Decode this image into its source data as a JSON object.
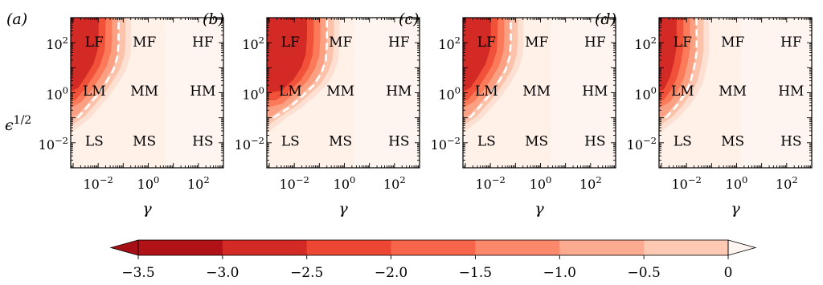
{
  "chart_data": {
    "type": "heatmap",
    "panels": [
      {
        "label": "(a)",
        "dash_path": [
          [
            0.0015,
            0.1
          ],
          [
            0.004,
            0.3
          ],
          [
            0.01,
            0.9
          ],
          [
            0.02,
            2.5
          ],
          [
            0.04,
            8
          ],
          [
            0.06,
            30
          ],
          [
            0.065,
            100
          ],
          [
            0.065,
            1000
          ]
        ]
      },
      {
        "label": "(b)",
        "dash_path": [
          [
            0.0015,
            0.1
          ],
          [
            0.006,
            0.25
          ],
          [
            0.02,
            0.7
          ],
          [
            0.06,
            2
          ],
          [
            0.12,
            6
          ],
          [
            0.18,
            20
          ],
          [
            0.2,
            100
          ],
          [
            0.2,
            1000
          ]
        ]
      },
      {
        "label": "(c)",
        "dash_path": [
          [
            0.0015,
            0.1
          ],
          [
            0.004,
            0.3
          ],
          [
            0.01,
            0.9
          ],
          [
            0.02,
            2.5
          ],
          [
            0.04,
            8
          ],
          [
            0.06,
            30
          ],
          [
            0.065,
            100
          ],
          [
            0.065,
            1000
          ]
        ]
      },
      {
        "label": "(d)",
        "dash_path": [
          [
            0.0015,
            0.1
          ],
          [
            0.004,
            0.3
          ],
          [
            0.008,
            0.8
          ],
          [
            0.014,
            2.5
          ],
          [
            0.02,
            10
          ],
          [
            0.025,
            40
          ],
          [
            0.025,
            1000
          ]
        ]
      }
    ],
    "x_label": "γ",
    "y_label_base": "ϵ",
    "y_label_exp": "1/2",
    "x_scale": "log",
    "y_scale": "log",
    "xlim": [
      0.0008,
      1000
    ],
    "ylim": [
      0.001,
      1000
    ],
    "x_ticks": [
      {
        "base": "10",
        "exp": "−2",
        "value": 0.01
      },
      {
        "base": "10",
        "exp": "0",
        "value": 1
      },
      {
        "base": "10",
        "exp": "2",
        "value": 100
      }
    ],
    "y_ticks": [
      {
        "base": "10",
        "exp": "−2",
        "value": 0.01
      },
      {
        "base": "10",
        "exp": "0",
        "value": 1
      },
      {
        "base": "10",
        "exp": "2",
        "value": 100
      }
    ],
    "regions": [
      {
        "label": "LF",
        "x": 0.007,
        "y": 110
      },
      {
        "label": "MF",
        "x": 0.7,
        "y": 110
      },
      {
        "label": "HF",
        "x": 150,
        "y": 110
      },
      {
        "label": "LM",
        "x": 0.007,
        "y": 1.2
      },
      {
        "label": "MM",
        "x": 0.7,
        "y": 1.2
      },
      {
        "label": "HM",
        "x": 150,
        "y": 1.2
      },
      {
        "label": "LS",
        "x": 0.007,
        "y": 0.012
      },
      {
        "label": "MS",
        "x": 0.7,
        "y": 0.012
      },
      {
        "label": "HS",
        "x": 150,
        "y": 0.012
      }
    ],
    "colorbar": {
      "levels": [
        -3.5,
        -3.0,
        -2.5,
        -2.0,
        -1.5,
        -1.0,
        -0.5,
        0
      ],
      "tick_labels": [
        "−3.5",
        "−3.0",
        "−2.5",
        "−2.0",
        "−1.5",
        "−1.0",
        "−0.5",
        "0"
      ],
      "colors": [
        "#b11218",
        "#d42a25",
        "#ed4633",
        "#f7654a",
        "#fb886a",
        "#fcab90",
        "#fdc9b3"
      ],
      "extend": "both",
      "under_color": "#a50f15",
      "over_color": "#fff5f0"
    },
    "fill_colors": {
      "background": "#fff0e8",
      "level_-0.5": "#fde0d2",
      "level_-1.0": "#fcc2aa",
      "level_-1.5": "#fca083",
      "level_-2.0": "#fb7a5a",
      "level_-2.5": "#f05138",
      "level_-3.0": "#d42a25"
    },
    "dash_color": "#ffffff"
  }
}
